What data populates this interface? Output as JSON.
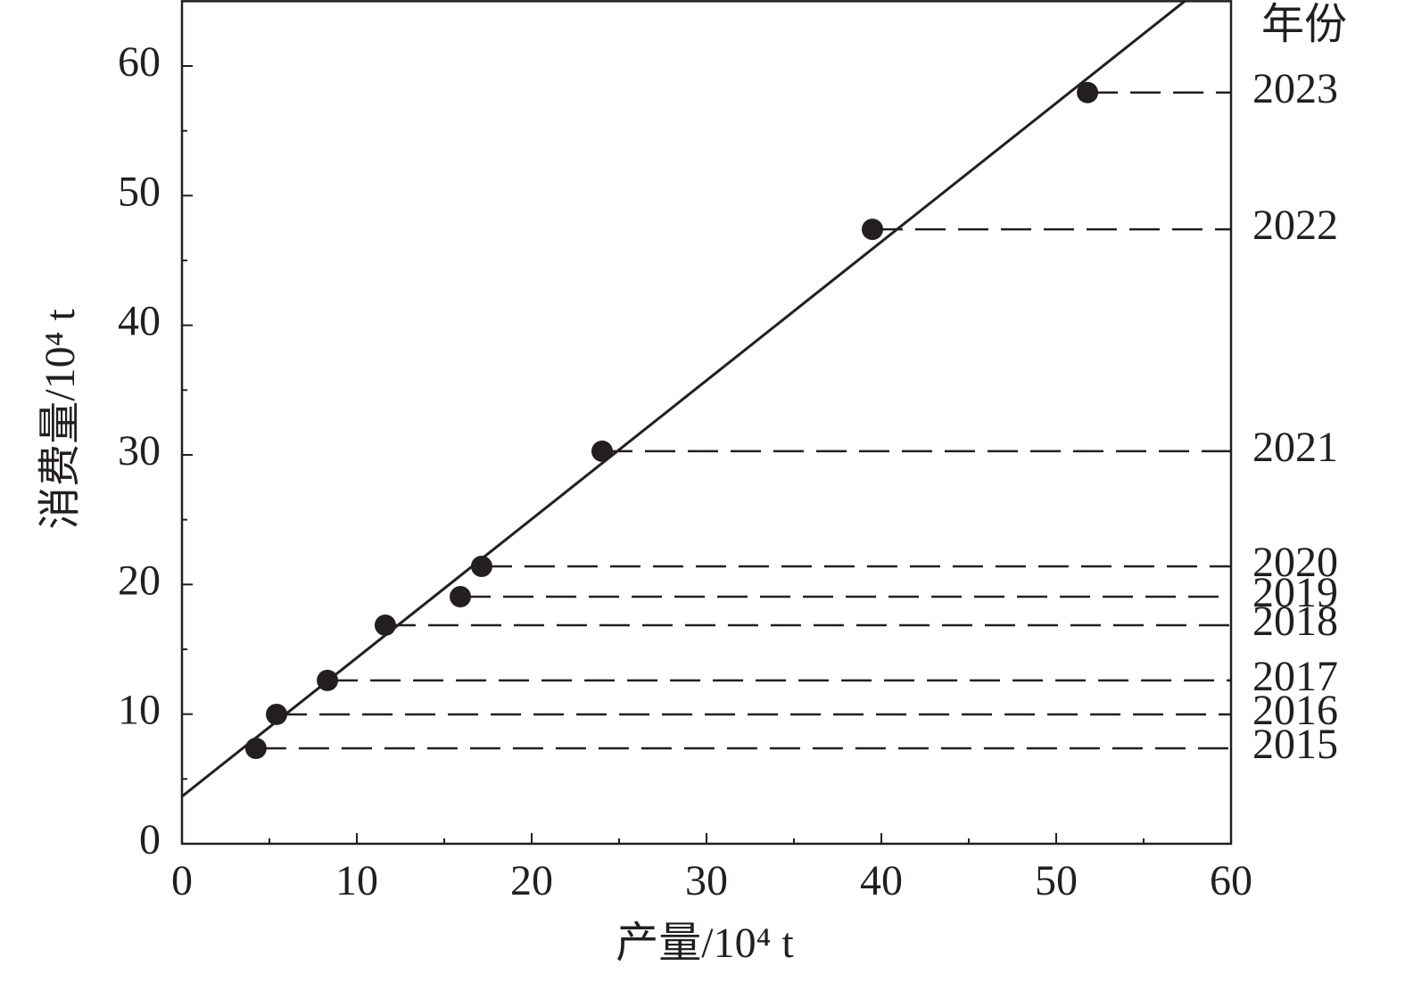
{
  "chart_data": {
    "type": "scatter",
    "x_label": "产量/10⁴ t",
    "y_label": "消费量/10⁴ t",
    "legend_title": "年份",
    "xlim": [
      0,
      60
    ],
    "ylim": [
      0,
      65
    ],
    "xticks": [
      0,
      10,
      20,
      30,
      40,
      50,
      60
    ],
    "yticks": [
      0,
      10,
      20,
      30,
      40,
      50,
      60
    ],
    "xminorticks": [
      5,
      15,
      25,
      35,
      45,
      55
    ],
    "yminorticks": [
      5,
      15,
      25,
      35,
      45,
      55
    ],
    "series": [
      {
        "name": "年份",
        "color": "#231f20",
        "labels": [
          "2015",
          "2016",
          "2017",
          "2018",
          "2019",
          "2020",
          "2021",
          "2022",
          "2023"
        ],
        "x": [
          4.23,
          5.41,
          8.32,
          11.63,
          15.92,
          17.14,
          24.03,
          39.49,
          51.79
        ],
        "values": [
          7.36,
          9.98,
          12.6,
          16.86,
          19.06,
          21.4,
          30.28,
          47.4,
          57.95
        ]
      }
    ],
    "fit_line": {
      "x": [
        0,
        57.35
      ],
      "y": [
        3.65,
        65
      ],
      "color": "#231f20"
    }
  }
}
